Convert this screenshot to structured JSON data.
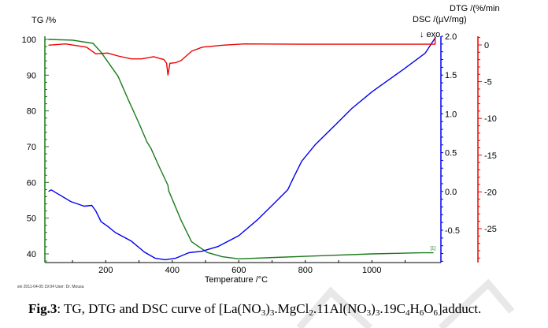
{
  "chart_data": {
    "type": "line",
    "title": "",
    "xlabel": "Temperature /°C",
    "xlim": [
      18,
      1198
    ],
    "xticks": [
      200,
      400,
      600,
      800,
      1000
    ],
    "y_axes": [
      {
        "id": "tg",
        "label": "TG /%",
        "ylim": [
          37.5,
          100.5
        ],
        "ticks": [
          40,
          50,
          60,
          70,
          80,
          90,
          100
        ],
        "color": "#1a7a1a",
        "side": "left"
      },
      {
        "id": "dsc",
        "label": "DSC /(µV/mg)",
        "ylim": [
          -0.93,
          2.05
        ],
        "ticks": [
          -0.5,
          0.0,
          0.5,
          1.0,
          1.5,
          2.0
        ],
        "tick_labels": [
          "-0.5",
          "0.0",
          "0.5",
          "1.0",
          "1.5",
          "2.0"
        ],
        "color": "#0000ee",
        "side": "right",
        "annotation": "↓ exo"
      },
      {
        "id": "dtg",
        "label": "DTG /(%/min",
        "ylim": [
          -30,
          1.2
        ],
        "ticks": [
          -25,
          -20,
          -15,
          -10,
          -5,
          0
        ],
        "color": "#ee0000",
        "side": "right-outer"
      }
    ],
    "series": [
      {
        "name": "TG",
        "axis": "tg",
        "color": "#1a7a1a",
        "x": [
          28,
          100,
          162,
          186,
          237,
          268,
          300,
          324,
          336,
          360,
          387,
          389,
          427,
          458,
          505,
          550,
          600,
          710,
          850,
          1000,
          1150,
          1185
        ],
        "y": [
          100,
          99.8,
          98.9,
          96.4,
          89.7,
          83.1,
          76.5,
          71.3,
          69.5,
          64.5,
          59.2,
          57.7,
          49.3,
          43.4,
          40.4,
          39.2,
          38.6,
          39.0,
          39.5,
          40.0,
          40.3,
          40.3
        ],
        "end_label": "[1]"
      },
      {
        "name": "DSC",
        "axis": "dsc",
        "color": "#0000ee",
        "x": [
          28,
          36,
          95,
          135,
          158,
          170,
          186,
          206,
          229,
          277,
          316,
          348,
          379,
          411,
          450,
          490,
          537,
          600,
          655,
          700,
          747,
          766,
          789,
          829,
          893,
          940,
          1002,
          1097,
          1160,
          1192
        ],
        "y": [
          0.0,
          0.02,
          -0.13,
          -0.19,
          -0.18,
          -0.25,
          -0.39,
          -0.45,
          -0.53,
          -0.64,
          -0.78,
          -0.86,
          -0.88,
          -0.86,
          -0.79,
          -0.77,
          -0.71,
          -0.57,
          -0.37,
          -0.18,
          0.02,
          0.19,
          0.39,
          0.6,
          0.87,
          1.07,
          1.29,
          1.58,
          1.78,
          1.99
        ]
      },
      {
        "name": "DTG",
        "axis": "dtg",
        "color": "#ee0000",
        "x": [
          28,
          79,
          142,
          170,
          206,
          237,
          277,
          308,
          344,
          375,
          383,
          387,
          393,
          411,
          427,
          458,
          490,
          553,
          616,
          800,
          1000,
          1190,
          1190
        ],
        "y": [
          -0.03,
          0.14,
          -0.3,
          -1.2,
          -1.1,
          -1.5,
          -1.9,
          -1.9,
          -1.6,
          -2.0,
          -2.5,
          -4.1,
          -2.5,
          -2.4,
          -2.1,
          -0.86,
          -0.3,
          -0.03,
          0.14,
          0.1,
          0.1,
          0.1,
          1.1
        ]
      }
    ]
  },
  "footer": "sin   2011-04-05 19:04   User: Dr. Mousa",
  "caption": {
    "label": "Fig.3",
    "parts": [
      {
        "t": ": TG, DTG and DSC curve of [La(NO"
      },
      {
        "t": "3",
        "sub": true
      },
      {
        "t": ")"
      },
      {
        "t": "3",
        "sub": true
      },
      {
        "t": ".MgCl"
      },
      {
        "t": "2",
        "sub": true
      },
      {
        "t": ".11Al(NO"
      },
      {
        "t": "3",
        "sub": true
      },
      {
        "t": ")"
      },
      {
        "t": "3",
        "sub": true
      },
      {
        "t": ".19C"
      },
      {
        "t": "4",
        "sub": true
      },
      {
        "t": "H"
      },
      {
        "t": "6",
        "sub": true
      },
      {
        "t": "O"
      },
      {
        "t": "6",
        "sub": true
      },
      {
        "t": "]adduct."
      }
    ]
  }
}
